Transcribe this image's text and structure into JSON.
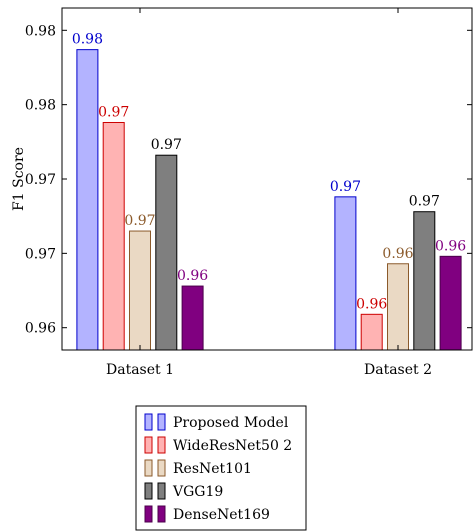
{
  "chart_data": {
    "type": "bar",
    "title": "",
    "xlabel": "",
    "ylabel": "F1 Score",
    "categories": [
      "Dataset 1",
      "Dataset 2"
    ],
    "ylim": [
      0.9585,
      0.9815
    ],
    "y_ticks": [
      0.96,
      0.965,
      0.97,
      0.975,
      0.98
    ],
    "y_tick_labels": [
      "0.96",
      "0.97",
      "0.97",
      "0.98",
      "0.98"
    ],
    "grid": false,
    "legend_position": "bottom",
    "series": [
      {
        "name": "Proposed Model",
        "values": [
          0.9787,
          0.9688
        ],
        "value_labels": [
          "0.98",
          "0.97"
        ],
        "fill": "#b3b3ff",
        "stroke": "#0000cc",
        "label_color": "#0000cc"
      },
      {
        "name": "WideResNet50 2",
        "values": [
          0.9738,
          0.9609
        ],
        "value_labels": [
          "0.97",
          "0.96"
        ],
        "fill": "#ffb3b3",
        "stroke": "#cc0000",
        "label_color": "#cc0000"
      },
      {
        "name": "ResNet101",
        "values": [
          0.9665,
          0.9643
        ],
        "value_labels": [
          "0.97",
          "0.96"
        ],
        "fill": "#ead9c4",
        "stroke": "#8b5a2b",
        "label_color": "#8b5a2b"
      },
      {
        "name": "VGG19",
        "values": [
          0.9716,
          0.9678
        ],
        "value_labels": [
          "0.97",
          "0.97"
        ],
        "fill": "#7f7f7f",
        "stroke": "#000000",
        "label_color": "#000000"
      },
      {
        "name": "DenseNet169",
        "values": [
          0.9628,
          0.9648
        ],
        "value_labels": [
          "0.96",
          "0.96"
        ],
        "fill": "#800080",
        "stroke": "#4b004b",
        "label_color": "#800080"
      }
    ]
  }
}
